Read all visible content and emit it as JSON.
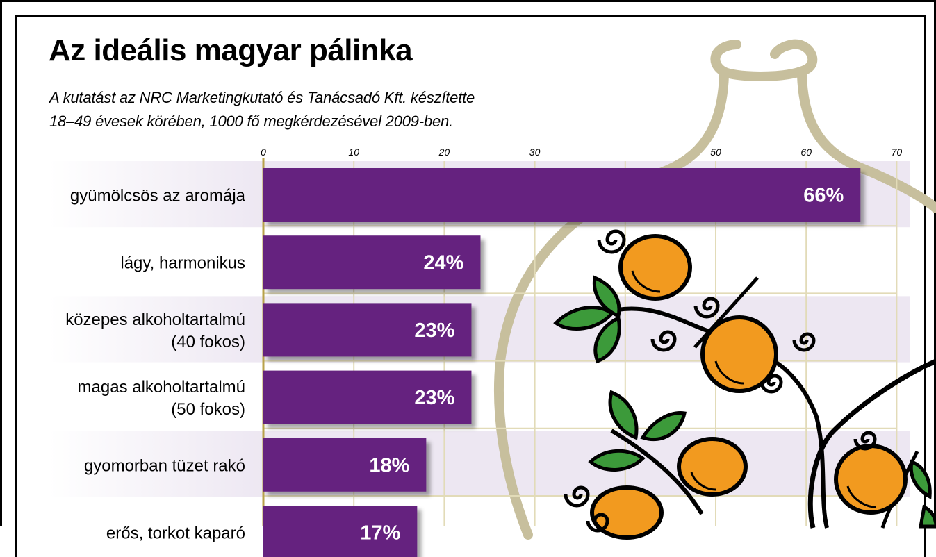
{
  "colors": {
    "bar": "#65237f",
    "row_band": "#ede7f2",
    "grid": "#e2dbb8",
    "vessel": "#c7bf9d",
    "fruit": "#f29a1f",
    "leaf": "#3c9a3a"
  },
  "decoration": {
    "description": "stylized bottle outline with orange fruits, green leaves and curling vines"
  },
  "chart_data": {
    "type": "bar",
    "orientation": "horizontal",
    "title": "Az ideális magyar pálinka",
    "subtitle_lines": [
      "A kutatást az NRC Marketingkutató és Tanácsadó Kft. készítette",
      "18–49 évesek körében, 1000 fő megkérdezésével 2009-ben."
    ],
    "xlim": [
      0,
      70
    ],
    "xticks": [
      0,
      10,
      20,
      30,
      40,
      50,
      60,
      70
    ],
    "xtick_labels": [
      "0",
      "10",
      "20",
      "30",
      "",
      "50",
      "60",
      "70"
    ],
    "grid": true,
    "categories": [
      [
        "gyümölcsös az aromája"
      ],
      [
        "lágy, harmonikus"
      ],
      [
        "közepes alkoholtartalmú",
        "(40 fokos)"
      ],
      [
        "magas alkoholtartalmú",
        "(50 fokos)"
      ],
      [
        "gyomorban tüzet rakó"
      ],
      [
        "erős, torkot kaparó"
      ]
    ],
    "values": [
      66,
      24,
      23,
      23,
      18,
      17
    ],
    "value_labels": [
      "66%",
      "24%",
      "23%",
      "23%",
      "18%",
      "17%"
    ]
  }
}
